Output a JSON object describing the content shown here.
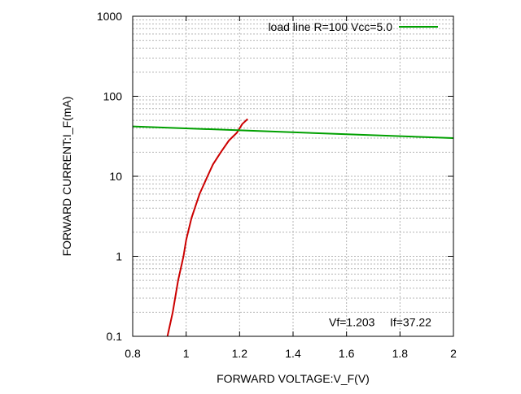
{
  "chart_data": {
    "type": "line",
    "xlabel": "FORWARD VOLTAGE:V_F(V)",
    "ylabel": "FORWARD CURRENT:I_F(mA)",
    "xlim": [
      0.8,
      2.0
    ],
    "ylim": [
      0.1,
      1000
    ],
    "y_scale": "log",
    "grid": true,
    "legend_position": "top-right",
    "x_ticks": [
      "0.8",
      "1",
      "1.2",
      "1.4",
      "1.6",
      "1.8",
      "2"
    ],
    "y_ticks": [
      "0.1",
      "1",
      "10",
      "100",
      "1000"
    ],
    "series": [
      {
        "name": "",
        "color": "#cc0000",
        "x": [
          0.93,
          0.95,
          0.97,
          0.99,
          1.0,
          1.02,
          1.05,
          1.08,
          1.1,
          1.13,
          1.16,
          1.19,
          1.21,
          1.23
        ],
        "y": [
          0.1,
          0.2,
          0.5,
          1.0,
          1.6,
          3.0,
          6.0,
          10.0,
          14.0,
          20.0,
          28.0,
          35.0,
          45.0,
          52.0
        ]
      },
      {
        "name": "load line R=100 Vcc=5.0",
        "color": "#00a000",
        "x": [
          0.8,
          2.0
        ],
        "y": [
          42.0,
          30.0
        ]
      }
    ],
    "annotations": [
      {
        "text": "Vf=1.203",
        "x": 1.62,
        "y": 0.15
      },
      {
        "text": "If=37.22",
        "x": 1.84,
        "y": 0.15
      }
    ]
  }
}
